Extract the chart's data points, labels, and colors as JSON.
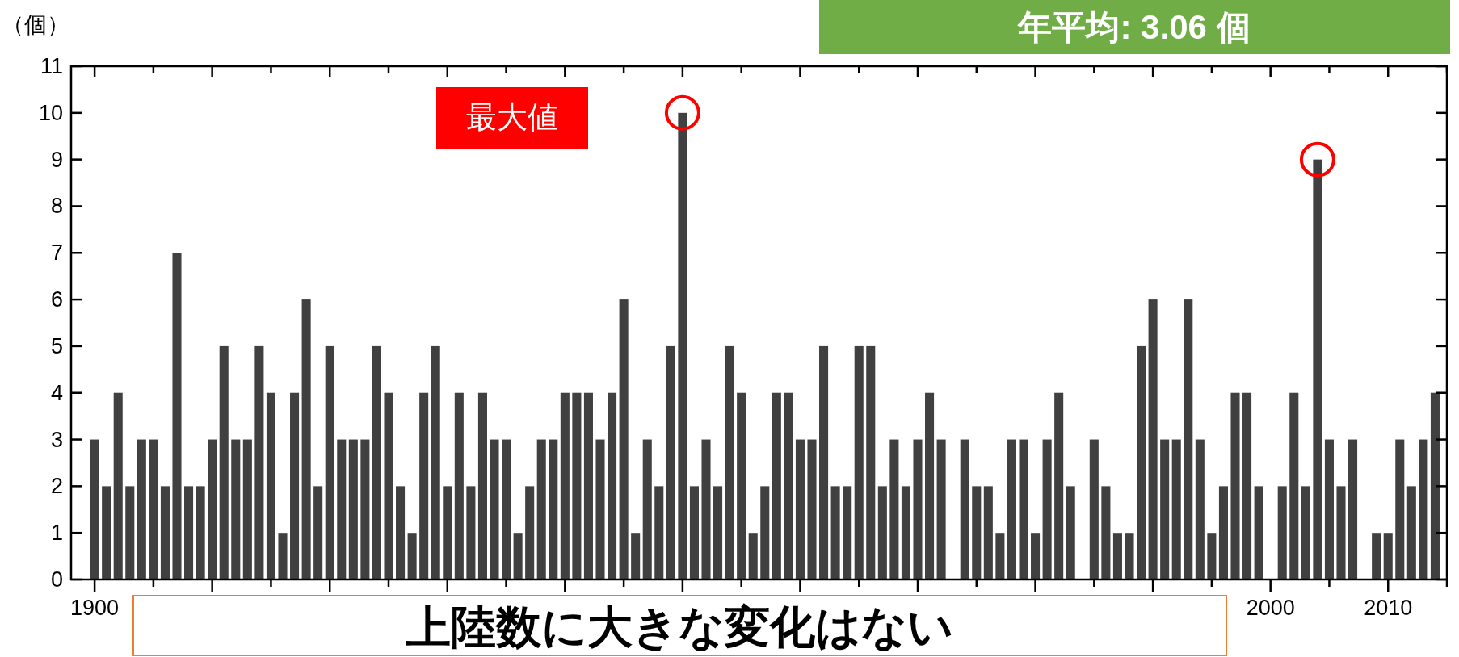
{
  "chart_data": {
    "type": "bar",
    "ylabel": "（個）",
    "color": "#404040",
    "x": [
      1900,
      1901,
      1902,
      1903,
      1904,
      1905,
      1906,
      1907,
      1908,
      1909,
      1910,
      1911,
      1912,
      1913,
      1914,
      1915,
      1916,
      1917,
      1918,
      1919,
      1920,
      1921,
      1922,
      1923,
      1924,
      1925,
      1926,
      1927,
      1928,
      1929,
      1930,
      1931,
      1932,
      1933,
      1934,
      1935,
      1936,
      1937,
      1938,
      1939,
      1940,
      1941,
      1942,
      1943,
      1944,
      1945,
      1946,
      1947,
      1948,
      1949,
      1950,
      1951,
      1952,
      1953,
      1954,
      1955,
      1956,
      1957,
      1958,
      1959,
      1960,
      1961,
      1962,
      1963,
      1964,
      1965,
      1966,
      1967,
      1968,
      1969,
      1970,
      1971,
      1972,
      1973,
      1974,
      1975,
      1976,
      1977,
      1978,
      1979,
      1980,
      1981,
      1982,
      1983,
      1984,
      1985,
      1986,
      1987,
      1988,
      1989,
      1990,
      1991,
      1992,
      1993,
      1994,
      1995,
      1996,
      1997,
      1998,
      1999,
      2000,
      2001,
      2002,
      2003,
      2004,
      2005,
      2006,
      2007,
      2008,
      2009,
      2010,
      2011,
      2012,
      2013,
      2014
    ],
    "values": [
      3,
      2,
      4,
      2,
      3,
      3,
      2,
      7,
      2,
      2,
      3,
      5,
      3,
      3,
      5,
      4,
      1,
      4,
      6,
      2,
      5,
      3,
      3,
      3,
      5,
      4,
      2,
      1,
      4,
      5,
      2,
      4,
      2,
      4,
      3,
      3,
      1,
      2,
      3,
      3,
      4,
      4,
      4,
      3,
      4,
      6,
      1,
      3,
      2,
      5,
      10,
      2,
      3,
      2,
      5,
      4,
      1,
      2,
      4,
      4,
      3,
      3,
      5,
      2,
      2,
      5,
      5,
      2,
      3,
      2,
      3,
      4,
      3,
      0,
      3,
      2,
      2,
      1,
      3,
      3,
      1,
      3,
      4,
      2,
      0,
      3,
      2,
      1,
      1,
      5,
      6,
      3,
      3,
      6,
      3,
      1,
      2,
      4,
      4,
      2,
      0,
      2,
      4,
      2,
      9,
      3,
      2,
      3,
      0,
      1,
      1,
      3,
      2,
      3,
      4
    ],
    "xlim": [
      1898,
      2015
    ],
    "ylim": [
      0,
      11
    ],
    "yticks": [
      0,
      1,
      2,
      3,
      4,
      5,
      6,
      7,
      8,
      9,
      10,
      11
    ],
    "xticks": [
      1900,
      {
        "value": 1905,
        "label": null
      },
      {
        "value": 1910,
        "label": null
      },
      {
        "value": 1915,
        "label": null
      },
      {
        "value": 1920,
        "label": null
      },
      {
        "value": 1925,
        "label": null
      },
      {
        "value": 1930,
        "label": null
      },
      {
        "value": 1935,
        "label": null
      },
      {
        "value": 1940,
        "label": null
      },
      {
        "value": 1945,
        "label": null
      },
      {
        "value": 1950,
        "label": null
      },
      {
        "value": 1955,
        "label": null
      },
      {
        "value": 1960,
        "label": null
      },
      {
        "value": 1965,
        "label": null
      },
      {
        "value": 1970,
        "label": null
      },
      {
        "value": 1975,
        "label": null
      },
      {
        "value": 1980,
        "label": null
      },
      {
        "value": 1985,
        "label": null
      },
      {
        "value": 1990,
        "label": null
      },
      {
        "value": 1995,
        "label": null
      },
      2000,
      {
        "value": 2005,
        "label": null
      },
      2010,
      {
        "value": 2015,
        "label": null
      }
    ],
    "annotations": [
      "最大値",
      "年平均: 3.06 個",
      "上陸数に大きな変化はない"
    ]
  }
}
